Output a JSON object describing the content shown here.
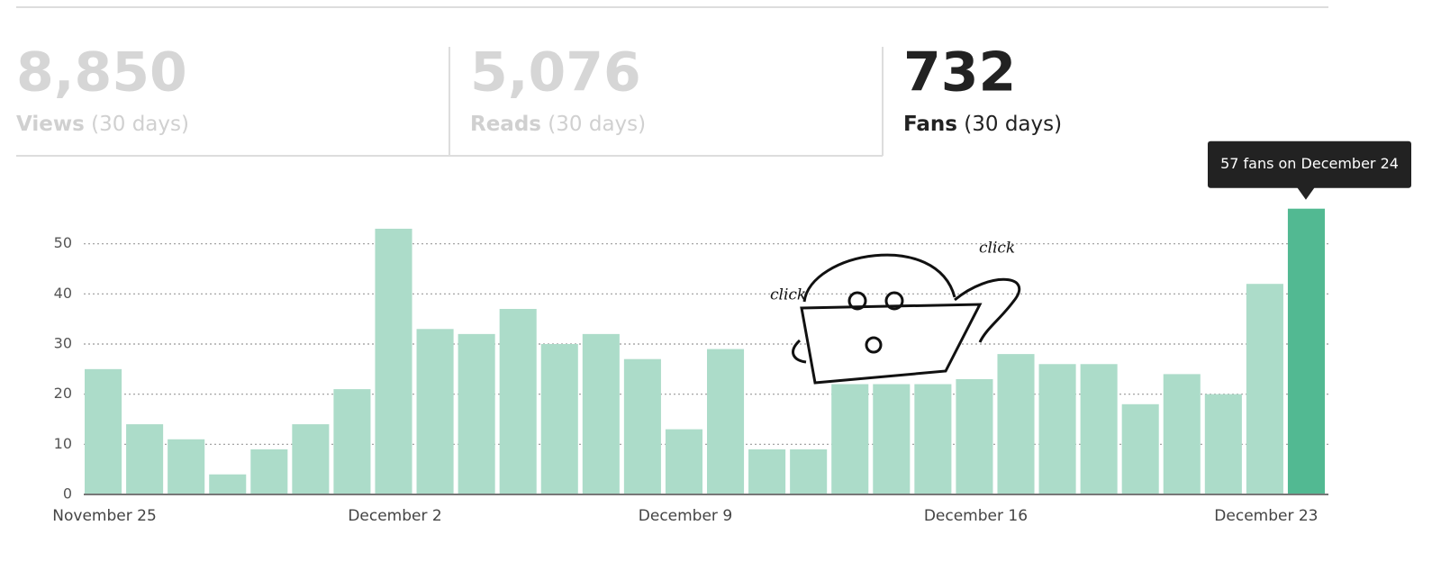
{
  "stats": [
    {
      "value": "8,850",
      "label": "Views",
      "period": "(30 days)"
    },
    {
      "value": "5,076",
      "label": "Reads",
      "period": "(30 days)"
    },
    {
      "value": "732",
      "label": "Fans",
      "period": "(30 days)"
    }
  ],
  "chart_data": {
    "type": "bar",
    "categories": [
      "November 25",
      null,
      null,
      null,
      null,
      null,
      null,
      "December 2",
      null,
      null,
      null,
      null,
      null,
      null,
      "December 9",
      null,
      null,
      null,
      null,
      null,
      null,
      "December 16",
      null,
      null,
      null,
      null,
      null,
      null,
      "December 23",
      null
    ],
    "values": [
      25,
      14,
      11,
      4,
      9,
      14,
      21,
      53,
      33,
      32,
      37,
      30,
      32,
      27,
      13,
      29,
      9,
      9,
      22,
      22,
      22,
      23,
      28,
      26,
      26,
      18,
      24,
      20,
      42,
      57
    ],
    "colors": [
      "#acdcc9",
      "#acdcc9",
      "#acdcc9",
      "#acdcc9",
      "#acdcc9",
      "#acdcc9",
      "#acdcc9",
      "#acdcc9",
      "#acdcc9",
      "#acdcc9",
      "#acdcc9",
      "#acdcc9",
      "#acdcc9",
      "#acdcc9",
      "#acdcc9",
      "#acdcc9",
      "#acdcc9",
      "#acdcc9",
      "#acdcc9",
      "#acdcc9",
      "#acdcc9",
      "#acdcc9",
      "#acdcc9",
      "#acdcc9",
      "#acdcc9",
      "#acdcc9",
      "#acdcc9",
      "#acdcc9",
      "#acdcc9",
      "#52b992"
    ],
    "ylim": [
      0,
      60
    ],
    "yticks": [
      0,
      10,
      20,
      30,
      40,
      50
    ],
    "grid": true,
    "tooltip": "57 fans on December 24",
    "annotations": [
      "click",
      "click"
    ]
  }
}
